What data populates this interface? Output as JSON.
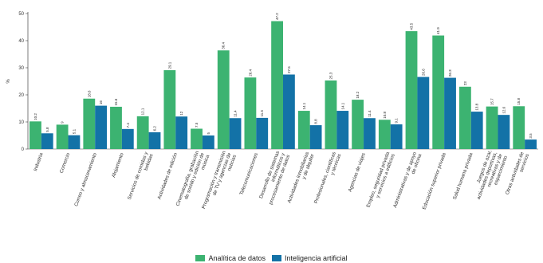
{
  "chart_data": {
    "type": "bar",
    "ylabel": "%",
    "ylim": [
      0,
      50
    ],
    "yticks": [
      0,
      10,
      20,
      30,
      40,
      50
    ],
    "grid": false,
    "legend_position": "bottom-center",
    "categories": [
      "Industria",
      "Comercio",
      "Correo y almacenamiento",
      "Alojamiento",
      "Servicios de comidas y bebidas",
      "Actividades de edición",
      "Cinematografía, grabación de sonido y edición de música",
      "Programación y transmisión de TV y agencias de noticias",
      "Telecomunicaciones",
      "Desarrollo de sistemas informáticos y procesamiento de datos",
      "Actividades inmobiliarias y de alquiler",
      "Profesionales, científicas y técnicas",
      "Agencias de viajes",
      "Empleo, seguridad privada y servicios a edificios",
      "Administrativas y de apoyo de oficina",
      "Educación superior privada",
      "Salud humana privada",
      "Juegos de azar, actividades deportivas, recreativas y de esparcimiento",
      "Otras actividades de servicios"
    ],
    "series": [
      {
        "name": "Analítica de datos",
        "color": "#3cb371",
        "values": [
          10.2,
          9,
          18.6,
          15.6,
          12.1,
          29.1,
          7.5,
          36.4,
          26.4,
          47.2,
          14.1,
          25.3,
          18.2,
          10.8,
          43.5,
          41.9,
          23,
          15.7,
          15.8
        ]
      },
      {
        "name": "Inteligencia artificial",
        "color": "#1372a7",
        "values": [
          5.8,
          5.1,
          16,
          7.4,
          6.2,
          12,
          5,
          11.4,
          11.5,
          27.5,
          8.8,
          14.1,
          11.4,
          9.1,
          26.6,
          26.3,
          13.8,
          12.6,
          3.5
        ]
      }
    ]
  }
}
